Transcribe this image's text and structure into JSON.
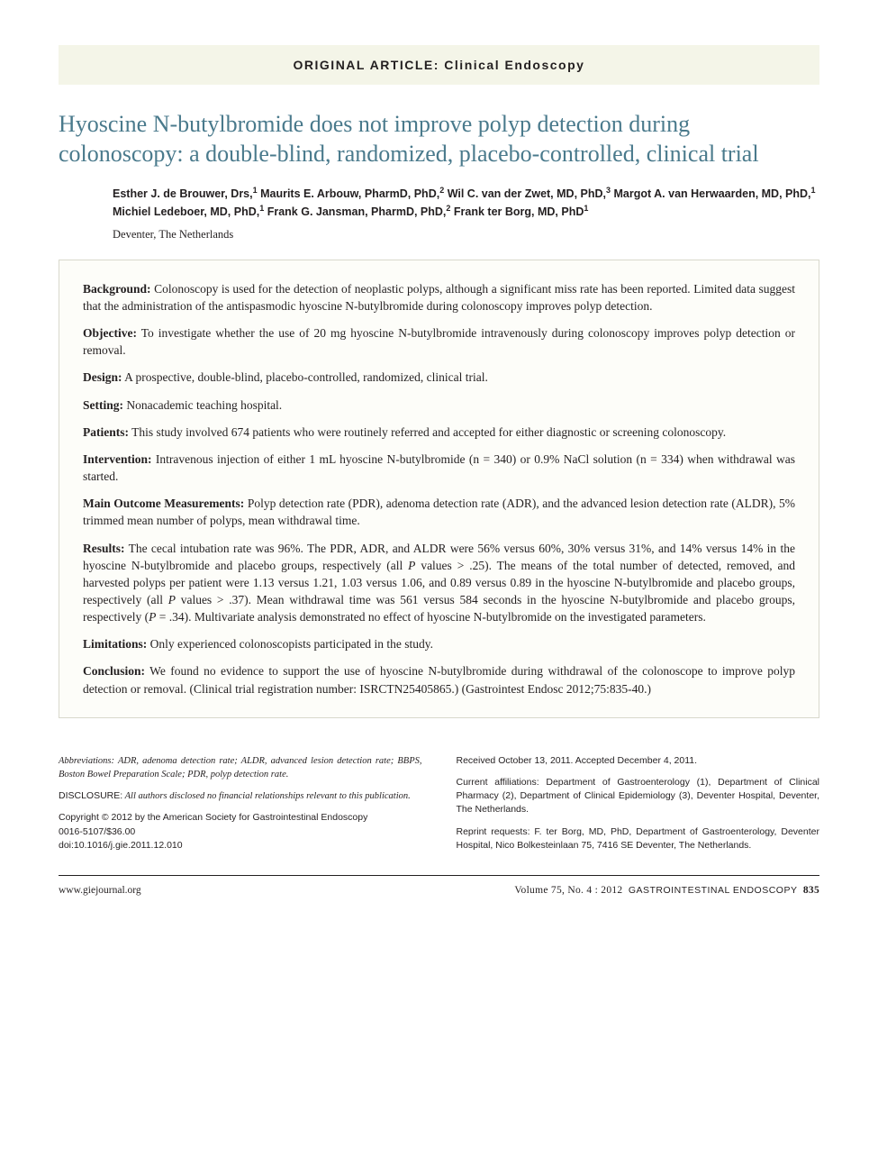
{
  "category": "ORIGINAL ARTICLE: Clinical Endoscopy",
  "title": "Hyoscine N-butylbromide does not improve polyp detection during colonoscopy: a double-blind, randomized, placebo-controlled, clinical trial",
  "authors_html": "Esther J. de Brouwer, Drs,<sup>1</sup> Maurits E. Arbouw, PharmD, PhD,<sup>2</sup> Wil C. van der Zwet, MD, PhD,<sup>3</sup> Margot A. van Herwaarden, MD, PhD,<sup>1</sup> Michiel Ledeboer, MD, PhD,<sup>1</sup> Frank G. Jansman, PharmD, PhD,<sup>2</sup> Frank ter Borg, MD, PhD<sup>1</sup>",
  "location": "Deventer, The Netherlands",
  "abstract": [
    {
      "label": "Background:",
      "text": " Colonoscopy is used for the detection of neoplastic polyps, although a significant miss rate has been reported. Limited data suggest that the administration of the antispasmodic hyoscine N-butylbromide during colonoscopy improves polyp detection."
    },
    {
      "label": "Objective:",
      "text": " To investigate whether the use of 20 mg hyoscine N-butylbromide intravenously during colonoscopy improves polyp detection or removal."
    },
    {
      "label": "Design:",
      "text": " A prospective, double-blind, placebo-controlled, randomized, clinical trial."
    },
    {
      "label": "Setting:",
      "text": " Nonacademic teaching hospital."
    },
    {
      "label": "Patients:",
      "text": " This study involved 674 patients who were routinely referred and accepted for either diagnostic or screening colonoscopy."
    },
    {
      "label": "Intervention:",
      "text": " Intravenous injection of either 1 mL hyoscine N-butylbromide (n = 340) or 0.9% NaCl solution (n = 334) when withdrawal was started."
    },
    {
      "label": "Main Outcome Measurements:",
      "text": " Polyp detection rate (PDR), adenoma detection rate (ADR), and the advanced lesion detection rate (ALDR), 5% trimmed mean number of polyps, mean withdrawal time."
    },
    {
      "label": "Results:",
      "text_html": " The cecal intubation rate was 96%. The PDR, ADR, and ALDR were 56% versus 60%, 30% versus 31%, and 14% versus 14% in the hyoscine N-butylbromide and placebo groups, respectively (all <em>P</em> values > .25). The means of the total number of detected, removed, and harvested polyps per patient were 1.13 versus 1.21, 1.03 versus 1.06, and 0.89 versus 0.89 in the hyoscine N-butylbromide and placebo groups, respectively (all <em>P</em> values > .37). Mean withdrawal time was 561 versus 584 seconds in the hyoscine N-butylbromide and placebo groups, respectively (<em>P</em> = .34). Multivariate analysis demonstrated no effect of hyoscine N-butylbromide on the investigated parameters."
    },
    {
      "label": "Limitations:",
      "text": " Only experienced colonoscopists participated in the study."
    },
    {
      "label": "Conclusion:",
      "text": " We found no evidence to support the use of hyoscine N-butylbromide during withdrawal of the colonoscope to improve polyp detection or removal. (Clinical trial registration number: ISRCTN25405865.) (Gastrointest Endosc 2012;75:835-40.)"
    }
  ],
  "footer_left": {
    "abbrev_label": "Abbreviations:",
    "abbrev_text": " ADR, adenoma detection rate; ALDR, advanced lesion detection rate; BBPS, Boston Bowel Preparation Scale; PDR, polyp detection rate.",
    "disclosure_label": "DISCLOSURE:",
    "disclosure_text": " All authors disclosed no financial relationships relevant to this publication.",
    "copyright": "Copyright © 2012 by the American Society for Gastrointestinal Endoscopy",
    "issn": "0016-5107/$36.00",
    "doi": "doi:10.1016/j.gie.2011.12.010"
  },
  "footer_right": {
    "received": "Received October 13, 2011. Accepted December 4, 2011.",
    "affiliations": "Current affiliations: Department of Gastroenterology (1), Department of Clinical Pharmacy (2), Department of Clinical Epidemiology (3), Deventer Hospital, Deventer, The Netherlands.",
    "reprints": "Reprint requests: F. ter Borg, MD, PhD, Department of Gastroenterology, Deventer Hospital, Nico Bolkesteinlaan 75, 7416 SE Deventer, The Netherlands."
  },
  "page_footer": {
    "url": "www.giejournal.org",
    "volume": "Volume 75, No. 4 : 2012",
    "journal": "GASTROINTESTINAL ENDOSCOPY",
    "page": "835"
  },
  "colors": {
    "banner_bg": "#f4f5e8",
    "title": "#4a7a8c",
    "text": "#231f20",
    "box_border": "#d8d8cc",
    "box_bg": "#fdfdf9"
  },
  "fonts": {
    "serif": "Georgia",
    "sans": "Arial",
    "title_size": 26,
    "body_size": 13.5,
    "footer_size": 10.5
  }
}
